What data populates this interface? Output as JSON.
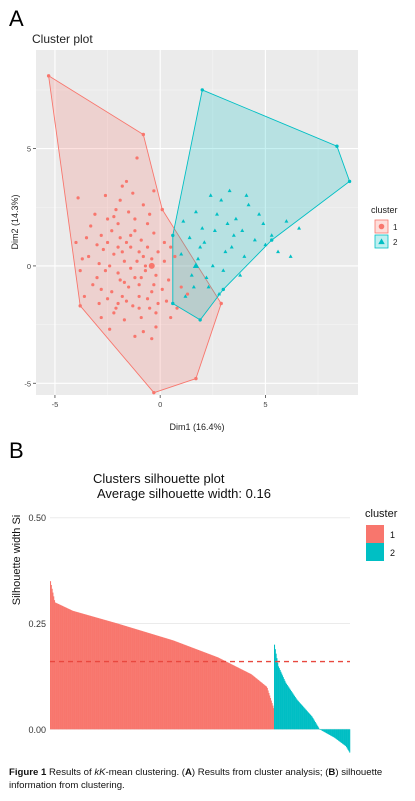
{
  "figure": {
    "caption_label": "Figure 1",
    "caption_text_1": " Results of ",
    "caption_italic": "kK",
    "caption_text_2": "-mean clustering. (",
    "caption_a": "A",
    "caption_text_3": ") Results from cluster analysis; (",
    "caption_b": "B",
    "caption_text_4": ") silhouette information from clustering."
  },
  "chart_data": [
    {
      "type": "scatter",
      "panel_label": "A",
      "title": "Cluster plot",
      "xlabel": "Dim1 (16.4%)",
      "ylabel": "Dim2 (14.3%)",
      "xlim": [
        -5.9,
        9.4
      ],
      "ylim": [
        -5.5,
        9.2
      ],
      "xticks": [
        -5,
        0,
        5
      ],
      "yticks": [
        -5,
        0,
        5
      ],
      "grid": true,
      "legend": {
        "title": "cluster",
        "position": "right",
        "entries": [
          "1",
          "2"
        ]
      },
      "colors": {
        "1": "#F8766D",
        "2": "#00BFC4"
      },
      "hulls": {
        "1": [
          [
            -5.3,
            8.1
          ],
          [
            -0.8,
            5.6
          ],
          [
            0.1,
            2.4
          ],
          [
            2.9,
            -1.6
          ],
          [
            1.7,
            -4.8
          ],
          [
            -0.3,
            -5.4
          ],
          [
            -3.8,
            -1.7
          ]
        ],
        "2": [
          [
            2.0,
            7.5
          ],
          [
            8.4,
            5.1
          ],
          [
            9.0,
            3.6
          ],
          [
            5.3,
            1.1
          ],
          [
            3.0,
            -1.0
          ],
          [
            1.9,
            -2.3
          ],
          [
            0.6,
            -1.6
          ],
          [
            0.6,
            1.3
          ]
        ]
      },
      "centroids": {
        "1": [
          -0.4,
          0.0
        ],
        "2": [
          1.7,
          0.0
        ]
      },
      "points": {
        "1": [
          [
            -0.4,
            0.3
          ],
          [
            -1.2,
            1.5
          ],
          [
            -2.5,
            2.0
          ],
          [
            -1.0,
            -0.8
          ],
          [
            0.3,
            -1.5
          ],
          [
            -3.0,
            -0.5
          ],
          [
            -2.0,
            0.8
          ],
          [
            -0.8,
            2.6
          ],
          [
            -1.6,
            3.6
          ],
          [
            -3.9,
            2.9
          ],
          [
            -3.4,
            0.4
          ],
          [
            -2.1,
            -1.8
          ],
          [
            -1.2,
            -3.0
          ],
          [
            -0.2,
            -2.6
          ],
          [
            1.0,
            -0.9
          ],
          [
            0.2,
            1.0
          ],
          [
            -1.7,
            0.2
          ],
          [
            -2.8,
            1.3
          ],
          [
            -0.4,
            -1.1
          ],
          [
            -1.9,
            -0.6
          ],
          [
            0.7,
            0.4
          ],
          [
            -1.0,
            0.6
          ],
          [
            -2.3,
            -1.1
          ],
          [
            -0.6,
            1.8
          ],
          [
            -3.6,
            -1.3
          ],
          [
            -1.3,
            -1.7
          ],
          [
            -0.2,
            -0.4
          ],
          [
            -2.6,
            3.0
          ],
          [
            -1.1,
            4.6
          ],
          [
            -0.3,
            3.2
          ],
          [
            -4.0,
            1.0
          ],
          [
            -2.4,
            -2.7
          ],
          [
            -1.5,
            2.3
          ],
          [
            -0.9,
            -2.2
          ],
          [
            0.5,
            -2.2
          ],
          [
            -3.1,
            2.2
          ],
          [
            -2.0,
            1.8
          ],
          [
            -0.7,
            0.0
          ],
          [
            -1.4,
            -0.1
          ],
          [
            -2.2,
            0.5
          ],
          [
            -0.1,
            0.6
          ],
          [
            -1.8,
            -1.3
          ],
          [
            -0.5,
            -1.8
          ],
          [
            -2.9,
            -1.6
          ],
          [
            -3.3,
            1.7
          ],
          [
            -1.6,
            1.0
          ],
          [
            0.1,
            -1.0
          ],
          [
            -2.6,
            -0.2
          ],
          [
            -1.0,
            -1.3
          ],
          [
            -0.3,
            1.4
          ],
          [
            -1.9,
            2.8
          ],
          [
            -3.7,
            0.3
          ],
          [
            -2.5,
            1.0
          ],
          [
            -1.2,
            -0.5
          ],
          [
            0.4,
            -0.6
          ],
          [
            -0.8,
            -2.8
          ],
          [
            -1.7,
            -2.3
          ],
          [
            -2.1,
            2.4
          ],
          [
            -2.8,
            -1.0
          ],
          [
            -0.6,
            0.8
          ],
          [
            -1.4,
            1.3
          ],
          [
            -0.2,
            -2.0
          ],
          [
            -1.1,
            0.2
          ],
          [
            -2.4,
            0.0
          ],
          [
            0.8,
            -1.8
          ],
          [
            -3.2,
            -0.8
          ],
          [
            -1.8,
            0.6
          ],
          [
            -0.9,
            1.1
          ],
          [
            -2.2,
            -2.0
          ],
          [
            -1.5,
            -0.9
          ],
          [
            -0.4,
            -3.1
          ],
          [
            -2.7,
            0.7
          ],
          [
            -1.3,
            3.1
          ],
          [
            -0.7,
            -0.2
          ],
          [
            -3.5,
            1.2
          ],
          [
            -2.0,
            -0.3
          ],
          [
            0.2,
            0.2
          ],
          [
            -1.6,
            -1.5
          ],
          [
            -0.5,
            2.2
          ],
          [
            -2.3,
            1.5
          ],
          [
            1.3,
            -1.2
          ],
          [
            -1.0,
            -1.8
          ],
          [
            -3.8,
            -0.2
          ],
          [
            -2.9,
            0.1
          ],
          [
            -0.8,
            0.4
          ],
          [
            -1.9,
            1.2
          ],
          [
            -0.3,
            -0.8
          ],
          [
            -2.5,
            -1.4
          ],
          [
            -1.2,
            2.0
          ],
          [
            0.5,
            0.8
          ],
          [
            -1.7,
            -0.7
          ],
          [
            -3.0,
            0.9
          ],
          [
            -0.6,
            -1.4
          ],
          [
            -2.2,
            2.1
          ],
          [
            -1.4,
            0.8
          ],
          [
            -0.1,
            -1.6
          ],
          [
            -2.8,
            -2.2
          ],
          [
            -1.8,
            3.4
          ],
          [
            -0.9,
            -0.5
          ],
          [
            -2.0,
            -1.6
          ]
        ],
        "2": [
          [
            2.0,
            1.6
          ],
          [
            3.1,
            0.6
          ],
          [
            1.5,
            -0.4
          ],
          [
            4.2,
            2.6
          ],
          [
            3.5,
            1.3
          ],
          [
            2.3,
            -0.9
          ],
          [
            1.0,
            0.5
          ],
          [
            5.3,
            1.3
          ],
          [
            6.2,
            0.4
          ],
          [
            4.1,
            3.0
          ],
          [
            2.7,
            2.2
          ],
          [
            1.7,
            2.3
          ],
          [
            3.8,
            -0.4
          ],
          [
            2.5,
            0.0
          ],
          [
            1.2,
            -1.3
          ],
          [
            4.9,
            1.8
          ],
          [
            3.3,
            3.2
          ],
          [
            2.1,
            1.0
          ],
          [
            5.0,
            0.9
          ],
          [
            1.4,
            1.2
          ],
          [
            3.0,
            -0.2
          ],
          [
            2.6,
            1.5
          ],
          [
            4.5,
            1.1
          ],
          [
            1.8,
            0.3
          ],
          [
            6.0,
            1.9
          ],
          [
            3.6,
            2.0
          ],
          [
            2.2,
            -0.5
          ],
          [
            4.0,
            0.4
          ],
          [
            1.1,
            1.9
          ],
          [
            3.4,
            0.8
          ],
          [
            2.9,
            2.8
          ],
          [
            5.6,
            0.6
          ],
          [
            1.6,
            -0.9
          ],
          [
            2.8,
            -1.2
          ],
          [
            4.7,
            2.2
          ],
          [
            3.2,
            1.8
          ],
          [
            1.9,
            0.8
          ],
          [
            6.6,
            1.6
          ],
          [
            2.4,
            3.0
          ],
          [
            3.9,
            1.5
          ]
        ]
      }
    },
    {
      "type": "bar",
      "panel_label": "B",
      "title": "Clusters silhouette plot",
      "subtitle": "Average silhouette width: 0.16",
      "ylabel": "Silhouette width Si",
      "ylim": [
        -0.03,
        0.53
      ],
      "yticks": [
        0.0,
        0.25,
        0.5
      ],
      "ytick_labels": [
        "0.00",
        "0.25",
        "0.50"
      ],
      "average_width": 0.16,
      "legend": {
        "title": "cluster",
        "position": "right",
        "entries": [
          "1",
          "2"
        ]
      },
      "colors": {
        "1": "#F8766D",
        "2": "#00BFC4"
      },
      "series": [
        {
          "name": "1",
          "count": 280,
          "profile": [
            [
              0,
              0.35
            ],
            [
              0.02,
              0.3
            ],
            [
              0.1,
              0.28
            ],
            [
              0.3,
              0.25
            ],
            [
              0.55,
              0.21
            ],
            [
              0.75,
              0.17
            ],
            [
              0.9,
              0.13
            ],
            [
              0.97,
              0.1
            ],
            [
              1.0,
              0.05
            ]
          ]
        },
        {
          "name": "2",
          "count": 95,
          "profile": [
            [
              0,
              0.2
            ],
            [
              0.05,
              0.15
            ],
            [
              0.15,
              0.11
            ],
            [
              0.3,
              0.07
            ],
            [
              0.5,
              0.03
            ],
            [
              0.6,
              0.0
            ],
            [
              0.8,
              -0.02
            ],
            [
              0.95,
              -0.04
            ],
            [
              1.0,
              -0.055
            ]
          ]
        }
      ]
    }
  ]
}
